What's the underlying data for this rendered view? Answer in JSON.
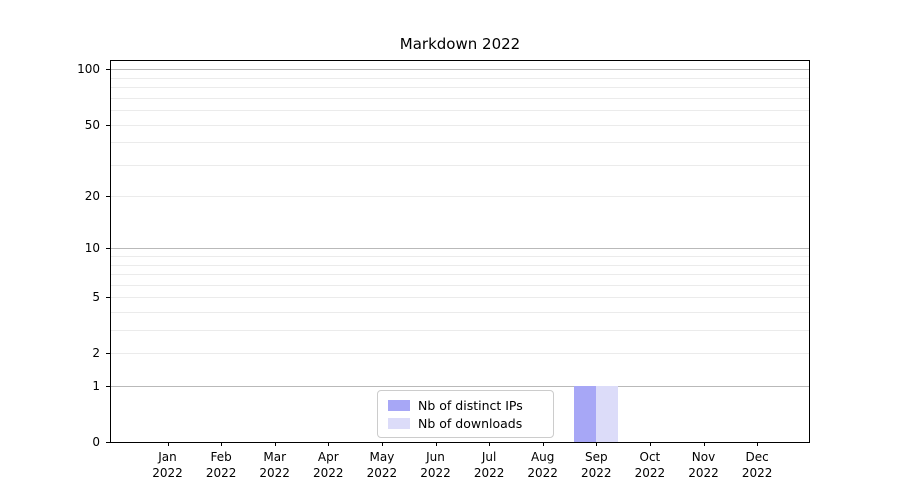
{
  "title": "Markdown 2022",
  "chart_data": {
    "type": "bar",
    "title": "Markdown 2022",
    "categories": [
      "Jan",
      "Feb",
      "Mar",
      "Apr",
      "May",
      "Jun",
      "Jul",
      "Aug",
      "Sep",
      "Oct",
      "Nov",
      "Dec"
    ],
    "year_label": "2022",
    "series": [
      {
        "name": "Nb of distinct IPs",
        "color": "#a7a7f6",
        "values": [
          0,
          0,
          0,
          0,
          0,
          0,
          0,
          0,
          1,
          0,
          0,
          0
        ]
      },
      {
        "name": "Nb of downloads",
        "color": "#dcdcf9",
        "values": [
          0,
          0,
          0,
          0,
          0,
          0,
          0,
          0,
          1,
          0,
          0,
          0
        ]
      }
    ],
    "y_axis": {
      "scale": "log1p",
      "ticks": [
        100,
        50,
        20,
        10,
        5,
        2,
        1,
        0
      ],
      "major_gridlines": [
        1,
        10,
        100
      ],
      "minor_gridlines": [
        2,
        3,
        4,
        5,
        6,
        7,
        8,
        9,
        20,
        30,
        40,
        50,
        60,
        70,
        80,
        90
      ],
      "ymin": 0,
      "ymax": 111
    },
    "x_axis": {
      "tick_label_top": "month",
      "tick_label_bottom": "year"
    },
    "legend": {
      "position": "lower center"
    },
    "grid": true,
    "colors": {
      "major_grid": "#b9b9b9",
      "minor_grid": "#ebebeb",
      "spine": "#000000",
      "background": "#ffffff"
    }
  }
}
